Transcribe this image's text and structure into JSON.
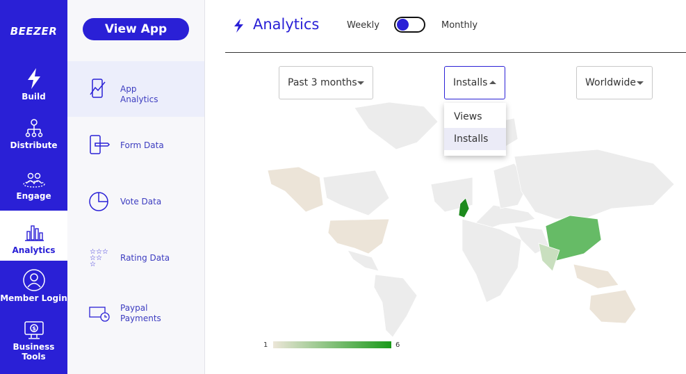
{
  "sidebar": {
    "logo": "BEEZER",
    "items": [
      "Build",
      "Distribute",
      "Engage",
      "Analytics",
      "Member Login",
      "Business Tools"
    ]
  },
  "submenu": {
    "button": "View App",
    "items": [
      "App Analytics",
      "Form Data",
      "Vote Data",
      "Rating Data",
      "Paypal Payments"
    ]
  },
  "header": {
    "title": "Analytics",
    "toggle_left": "Weekly",
    "toggle_right": "Monthly"
  },
  "filters": {
    "period": "Past 3 months",
    "metric": "Installs",
    "region": "Worldwide",
    "metric_options": [
      "Views",
      "Installs"
    ]
  },
  "legend": {
    "min": 1,
    "max": 6
  }
}
